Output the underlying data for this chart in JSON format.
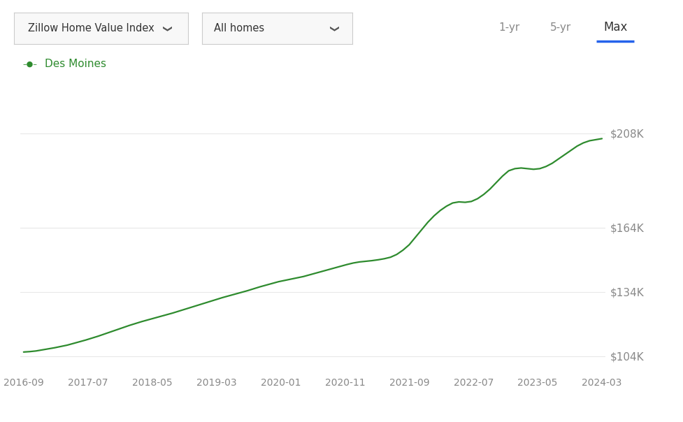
{
  "line_color": "#2e8b2e",
  "background_color": "#ffffff",
  "grid_color": "#e8e8e8",
  "legend_label": "Des Moines",
  "legend_color": "#2e8b2e",
  "ylabel_ticks": [
    104000,
    134000,
    164000,
    208000
  ],
  "ylabel_labels": [
    "$104K",
    "$134K",
    "$164K",
    "$208K"
  ],
  "ylim": [
    96000,
    217000
  ],
  "xtick_labels": [
    "2016-09",
    "2017-07",
    "2018-05",
    "2019-03",
    "2020-01",
    "2020-11",
    "2021-09",
    "2022-07",
    "2023-05",
    "2024-03"
  ],
  "header_text_left": "Zillow Home Value Index",
  "header_text_mid": "All homes",
  "header_tabs": [
    "1-yr",
    "5-yr",
    "Max"
  ],
  "header_tab_active": "Max",
  "data_y": [
    106000,
    106200,
    106500,
    107000,
    107500,
    108000,
    108600,
    109200,
    110000,
    110800,
    111600,
    112500,
    113400,
    114400,
    115400,
    116400,
    117400,
    118400,
    119300,
    120200,
    121000,
    121800,
    122600,
    123400,
    124200,
    125100,
    126000,
    126900,
    127800,
    128700,
    129600,
    130500,
    131400,
    132200,
    133000,
    133800,
    134600,
    135500,
    136400,
    137200,
    138000,
    138800,
    139400,
    140000,
    140600,
    141200,
    142000,
    142800,
    143600,
    144400,
    145200,
    146000,
    146800,
    147500,
    148000,
    148300,
    148600,
    149000,
    149500,
    150200,
    151500,
    153500,
    156000,
    159500,
    163000,
    166500,
    169500,
    172000,
    174000,
    175500,
    176000,
    175800,
    176200,
    177500,
    179500,
    182000,
    185000,
    188000,
    190500,
    191500,
    191800,
    191500,
    191200,
    191500,
    192500,
    194000,
    196000,
    198000,
    200000,
    202000,
    203500,
    204500,
    205000,
    205500
  ]
}
